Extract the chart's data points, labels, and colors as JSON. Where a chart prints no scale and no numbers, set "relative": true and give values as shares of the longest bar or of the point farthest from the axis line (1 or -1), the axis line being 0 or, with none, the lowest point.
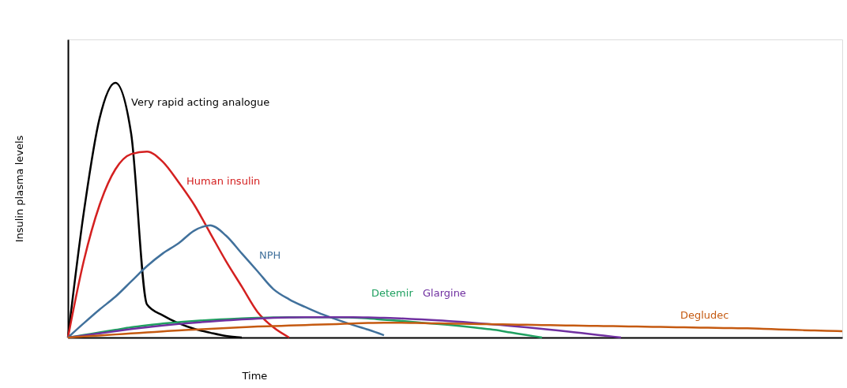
{
  "chart_data": {
    "type": "line",
    "relative": true,
    "xlabel": "Time",
    "ylabel": "Insulin plasma levels",
    "grid": false,
    "legend": false,
    "marker": "none",
    "line_style": "solid",
    "categories": [
      null,
      null,
      null,
      null,
      null,
      null,
      null,
      null,
      null,
      null,
      null,
      null,
      null,
      null,
      null,
      null,
      null,
      null,
      null,
      null,
      null,
      null,
      null,
      null,
      null,
      null,
      null,
      null,
      null,
      null,
      null,
      null,
      null,
      null,
      null,
      null,
      null,
      null,
      null,
      null,
      null,
      null,
      null,
      null,
      null,
      null,
      null,
      null,
      null,
      null
    ],
    "series": [
      {
        "name": "Very rapid acting analogue",
        "color": "#000000",
        "values": [
          0,
          0.49,
          0.86,
          1.0,
          0.8,
          0.13,
          0.087,
          0.056,
          0.034,
          0.019,
          0.006,
          0,
          null,
          null,
          null,
          null,
          null,
          null,
          null,
          null,
          null,
          null,
          null,
          null,
          null,
          null,
          null,
          null,
          null,
          null,
          null,
          null,
          null,
          null,
          null,
          null,
          null,
          null,
          null,
          null,
          null,
          null,
          null,
          null,
          null,
          null,
          null,
          null,
          null,
          null
        ]
      },
      {
        "name": "Human insulin",
        "color": "#d42020",
        "values": [
          0,
          0.3,
          0.52,
          0.66,
          0.72,
          0.73,
          0.69,
          0.61,
          0.52,
          0.41,
          0.3,
          0.2,
          0.1,
          0.04,
          0,
          null,
          null,
          null,
          null,
          null,
          null,
          null,
          null,
          null,
          null,
          null,
          null,
          null,
          null,
          null,
          null,
          null,
          null,
          null,
          null,
          null,
          null,
          null,
          null,
          null,
          null,
          null,
          null,
          null,
          null,
          null,
          null,
          null,
          null,
          null
        ]
      },
      {
        "name": "NPH",
        "color": "#41719c",
        "values": [
          0,
          0.056,
          0.11,
          0.16,
          0.22,
          0.28,
          0.33,
          0.37,
          0.42,
          0.44,
          0.4,
          0.33,
          0.26,
          0.19,
          0.15,
          0.12,
          0.093,
          0.071,
          0.05,
          0.031,
          0.009,
          null,
          null,
          null,
          null,
          null,
          null,
          null,
          null,
          null,
          null,
          null,
          null,
          null,
          null,
          null,
          null,
          null,
          null,
          null,
          null,
          null,
          null,
          null,
          null,
          null,
          null,
          null,
          null,
          null
        ]
      },
      {
        "name": "Detemir",
        "color": "#1fa060",
        "values": [
          0,
          0.01,
          0.02,
          0.03,
          0.04,
          0.048,
          0.055,
          0.06,
          0.065,
          0.069,
          0.072,
          0.075,
          0.077,
          0.079,
          0.08,
          0.08,
          0.08,
          0.08,
          0.078,
          0.075,
          0.07,
          0.066,
          0.06,
          0.055,
          0.05,
          0.044,
          0.037,
          0.03,
          0.02,
          0.01,
          0,
          null,
          null,
          null,
          null,
          null,
          null,
          null,
          null,
          null,
          null,
          null,
          null,
          null,
          null,
          null,
          null,
          null,
          null,
          null
        ]
      },
      {
        "name": "Glargine",
        "color": "#7030a0",
        "values": [
          0,
          0.008,
          0.016,
          0.025,
          0.033,
          0.04,
          0.047,
          0.053,
          0.058,
          0.063,
          0.067,
          0.071,
          0.074,
          0.077,
          0.079,
          0.08,
          0.08,
          0.08,
          0.08,
          0.079,
          0.077,
          0.075,
          0.072,
          0.069,
          0.065,
          0.061,
          0.056,
          0.051,
          0.046,
          0.04,
          0.034,
          0.028,
          0.021,
          0.014,
          0.007,
          0,
          null,
          null,
          null,
          null,
          null,
          null,
          null,
          null,
          null,
          null,
          null,
          null,
          null,
          null
        ]
      },
      {
        "name": "Degludec",
        "color": "#c55a11",
        "values": [
          0,
          0.004,
          0.008,
          0.012,
          0.016,
          0.02,
          0.024,
          0.028,
          0.031,
          0.034,
          0.037,
          0.04,
          0.043,
          0.045,
          0.047,
          0.049,
          0.051,
          0.053,
          0.055,
          0.057,
          0.058,
          0.058,
          0.057,
          0.056,
          0.055,
          0.054,
          0.053,
          0.052,
          0.051,
          0.05,
          0.049,
          0.048,
          0.047,
          0.046,
          0.045,
          0.044,
          0.043,
          0.042,
          0.041,
          0.04,
          0.039,
          0.038,
          0.037,
          0.036,
          0.034,
          0.032,
          0.03,
          0.028,
          0.026,
          0.025
        ]
      }
    ]
  }
}
